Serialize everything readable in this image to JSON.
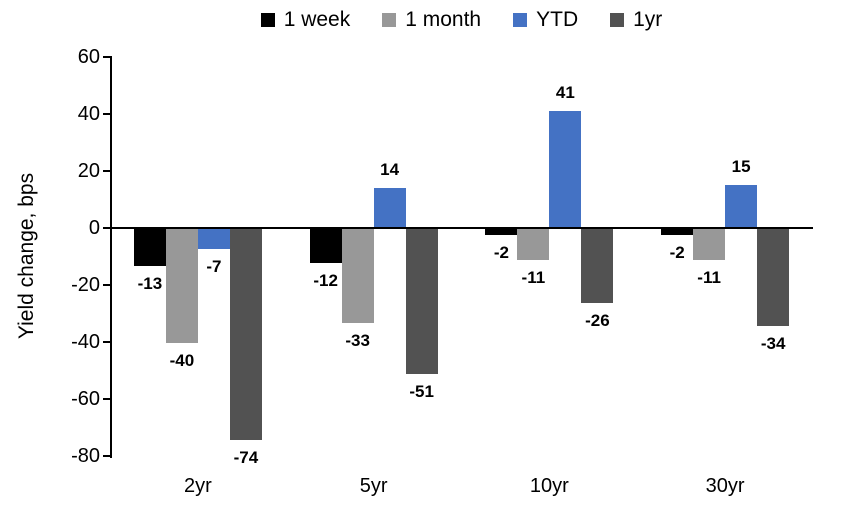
{
  "chart_data": {
    "type": "bar",
    "title": "",
    "ylabel": "Yield change, bps",
    "xlabel": "",
    "categories": [
      "2yr",
      "5yr",
      "10yr",
      "30yr"
    ],
    "series": [
      {
        "name": "1 week",
        "color": "#000000",
        "values": [
          -13,
          -12,
          -2,
          -2
        ]
      },
      {
        "name": "1 month",
        "color": "#989898",
        "values": [
          -40,
          -33,
          -11,
          -11
        ]
      },
      {
        "name": "YTD",
        "color": "#4472C4",
        "values": [
          -7,
          14,
          41,
          15
        ]
      },
      {
        "name": "1yr",
        "color": "#525252",
        "values": [
          -74,
          -51,
          -26,
          -34
        ]
      }
    ],
    "yticks": [
      60,
      40,
      20,
      0,
      -20,
      -40,
      -60,
      -80
    ],
    "ylim": [
      -80,
      60
    ],
    "grid": false,
    "legend_position": "top",
    "axis_color": "#000000",
    "data_labels": true
  }
}
